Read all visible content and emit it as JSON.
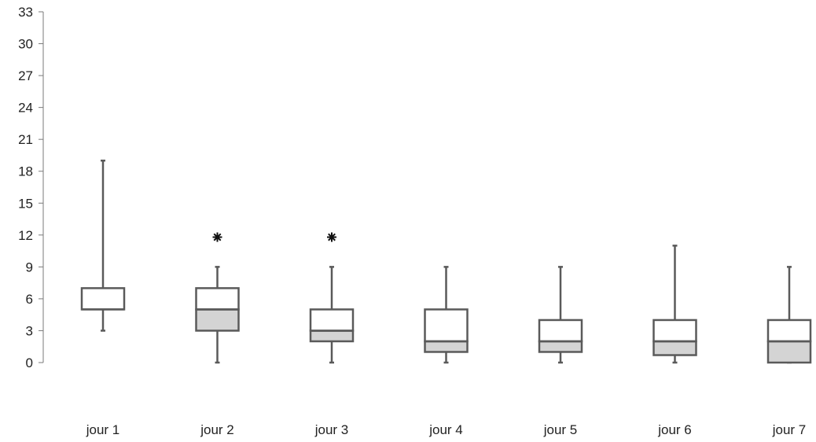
{
  "chart_data": {
    "type": "boxplot",
    "title": "",
    "xlabel": "",
    "ylabel": "",
    "ylim": [
      0,
      33
    ],
    "yticks": [
      0,
      3,
      6,
      9,
      12,
      15,
      18,
      21,
      24,
      27,
      30,
      33
    ],
    "grid": false,
    "categories": [
      "jour 1",
      "jour 2",
      "jour 3",
      "jour 4",
      "jour 5",
      "jour 6",
      "jour 7"
    ],
    "boxes": [
      {
        "min": 3,
        "q1": 5,
        "median": 5,
        "q3": 7,
        "max": 19,
        "outliers": []
      },
      {
        "min": 0,
        "q1": 3,
        "median": 5,
        "q3": 7,
        "max": 9,
        "outliers": [
          11.8
        ]
      },
      {
        "min": 0,
        "q1": 2,
        "median": 3,
        "q3": 5,
        "max": 9,
        "outliers": [
          11.8
        ]
      },
      {
        "min": 0,
        "q1": 1,
        "median": 2,
        "q3": 5,
        "max": 9,
        "outliers": []
      },
      {
        "min": 0,
        "q1": 1,
        "median": 2,
        "q3": 4,
        "max": 9,
        "outliers": []
      },
      {
        "min": 0,
        "q1": 0.7,
        "median": 2,
        "q3": 4,
        "max": 11,
        "outliers": []
      },
      {
        "min": 0,
        "q1": 0,
        "median": 2,
        "q3": 4,
        "max": 9,
        "outliers": []
      }
    ],
    "colors": {
      "lower_box": "#d4d4d4",
      "upper_box": "#ffffff",
      "stroke": "#5a5a5a",
      "outlier": "#111111"
    }
  }
}
